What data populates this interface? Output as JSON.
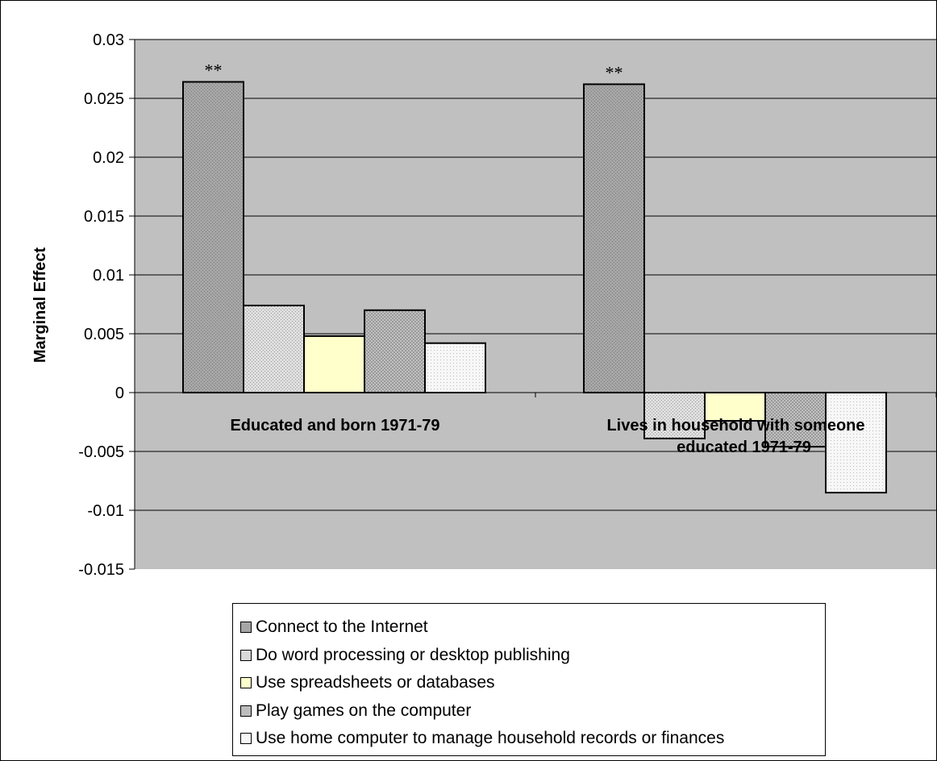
{
  "chart_data": {
    "type": "bar",
    "ylabel": "Marginal Effect",
    "ylim": [
      -0.015,
      0.03
    ],
    "ytick_step": 0.005,
    "ytick_labels": [
      "0.03",
      "0.025",
      "0.02",
      "0.015",
      "0.01",
      "0.005",
      "0",
      "-0.005",
      "-0.01",
      "-0.015"
    ],
    "grid": true,
    "legend_position": "bottom",
    "categories": [
      "Educated and born 1971-79",
      "Lives in household with someone educated 1971-79"
    ],
    "series": [
      {
        "name": "Connect to the Internet",
        "values": [
          0.0264,
          0.0262
        ],
        "color": "#a6a6a6",
        "pattern": "dots-dark"
      },
      {
        "name": "Do word processing or desktop publishing",
        "values": [
          0.0074,
          -0.0039
        ],
        "color": "#d9d9d9",
        "pattern": "dots-medium"
      },
      {
        "name": "Use spreadsheets or databases",
        "values": [
          0.0048,
          -0.0024
        ],
        "color": "#ffffcc",
        "pattern": "none"
      },
      {
        "name": "Play games on the computer",
        "values": [
          0.007,
          -0.0046
        ],
        "color": "#bfbfbf",
        "pattern": "crosshatch"
      },
      {
        "name": "Use home computer to manage household records or finances",
        "values": [
          0.0042,
          -0.0085
        ],
        "color": "#f0f0f0",
        "pattern": "dots-light"
      }
    ],
    "annotations": [
      {
        "text": "**",
        "series": 0,
        "category": 0
      },
      {
        "text": "**",
        "series": 0,
        "category": 1
      }
    ]
  },
  "colors": {
    "plot_background": "#c0c0c0",
    "gridline": "#000000",
    "page_background": "#ffffff"
  }
}
